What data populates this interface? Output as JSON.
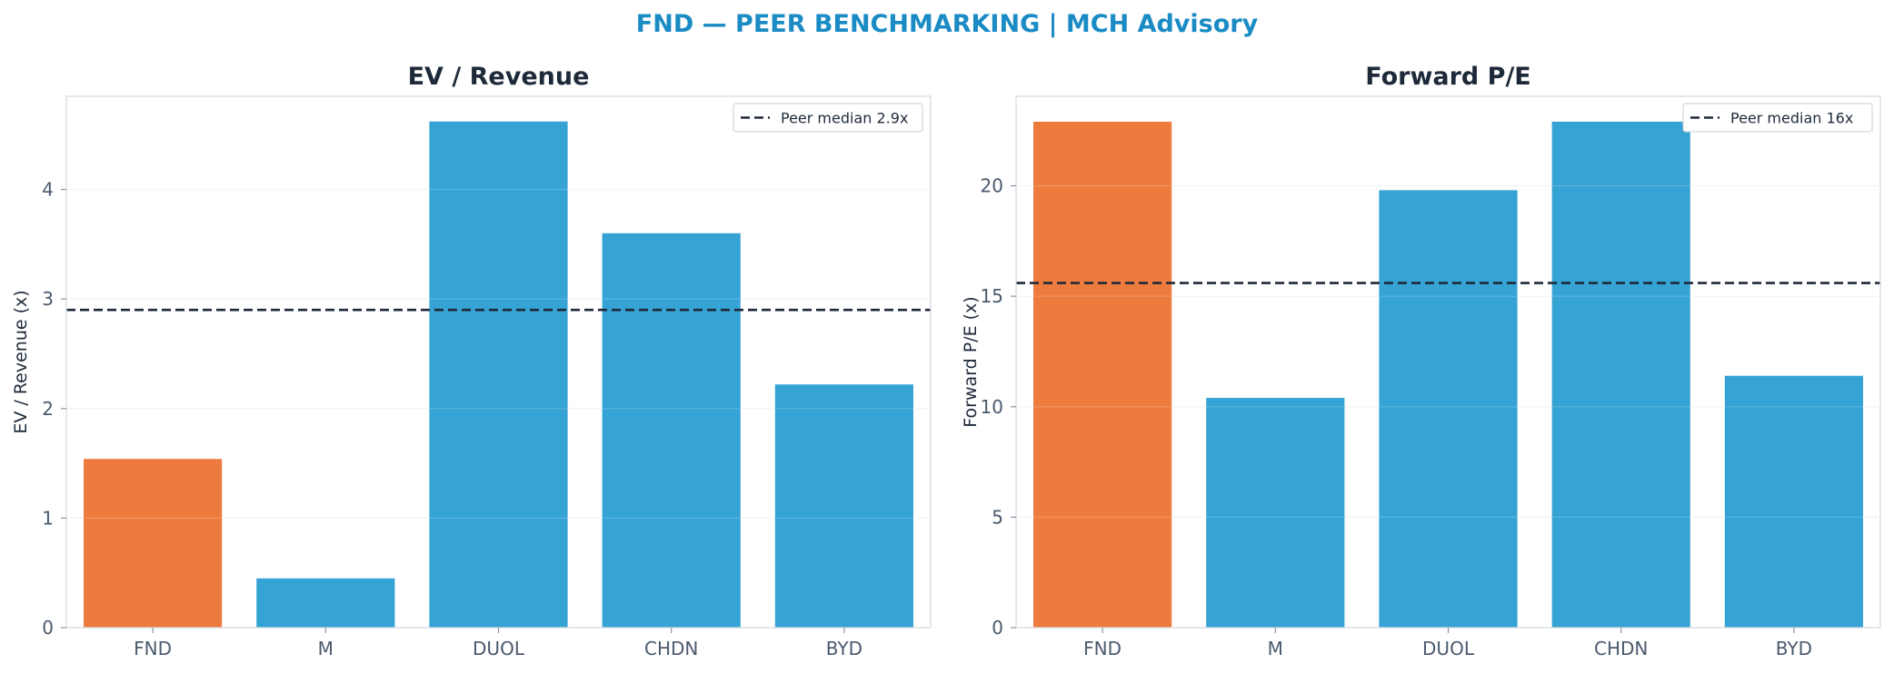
{
  "figure_title": "FND — PEER BENCHMARKING | MCH Advisory",
  "colors": {
    "highlight": "#ee7b3e",
    "peer": "#35a3d4",
    "median_line": "#1e2a3a",
    "title": "#1a8bc4",
    "grid": "#f0f2f4",
    "spine": "#d6dbe0"
  },
  "chart_data": [
    {
      "type": "bar",
      "title": "EV / Revenue",
      "xlabel": "",
      "ylabel": "EV / Revenue (x)",
      "categories": [
        "FND",
        "M",
        "DUOL",
        "CHDN",
        "BYD"
      ],
      "values": [
        1.54,
        0.45,
        4.62,
        3.6,
        2.22
      ],
      "highlight_category": "FND",
      "ylim": [
        0,
        4.85
      ],
      "yticks": [
        0,
        1,
        2,
        3,
        4
      ],
      "grid": "horizontal",
      "reference_line": {
        "value": 2.9,
        "label": "Peer median 2.9x",
        "style": "dashed"
      },
      "legend_position": "top-right"
    },
    {
      "type": "bar",
      "title": "Forward P/E",
      "xlabel": "",
      "ylabel": "Forward P/E (x)",
      "categories": [
        "FND",
        "M",
        "DUOL",
        "CHDN",
        "BYD"
      ],
      "values": [
        22.9,
        10.4,
        19.8,
        22.9,
        11.4
      ],
      "highlight_category": "FND",
      "ylim": [
        0,
        24.05
      ],
      "yticks": [
        0,
        5,
        10,
        15,
        20
      ],
      "grid": "horizontal",
      "reference_line": {
        "value": 15.6,
        "label": "Peer median 16x",
        "style": "dashed"
      },
      "legend_position": "top-right"
    }
  ]
}
